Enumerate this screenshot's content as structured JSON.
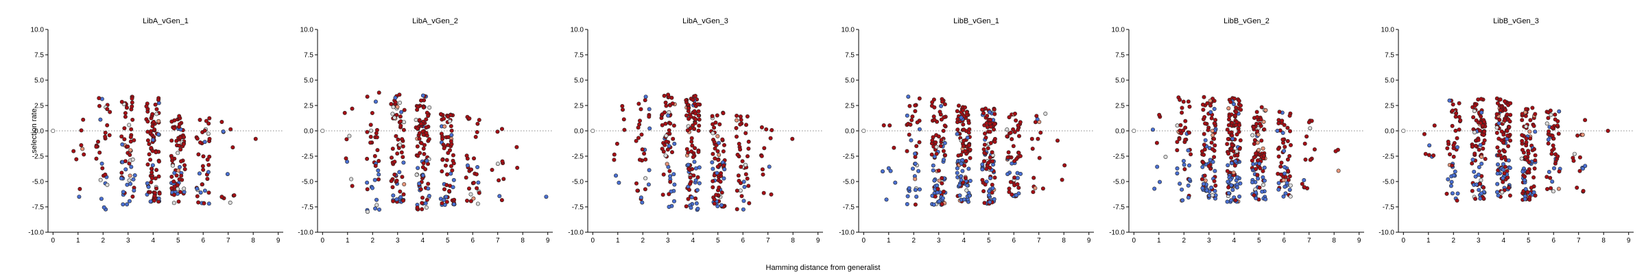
{
  "figure": {
    "xlabel": "Hamming distance from generalist",
    "ylabel": "selection rate"
  },
  "colors": {
    "red": "#a50f15",
    "blue": "#4a6fd1",
    "light": "#d9d9d9",
    "salmon": "#e6957a"
  },
  "chart_data": [
    {
      "type": "scatter",
      "title": "LibA_vGen_1",
      "xlim": [
        -0.2,
        9.2
      ],
      "ylim": [
        -10,
        10
      ],
      "xticks": [
        0,
        1,
        2,
        3,
        4,
        5,
        6,
        7,
        8,
        9
      ],
      "yticks": [
        10.0,
        7.5,
        5.0,
        2.5,
        0.0,
        -2.5,
        -5.0,
        -7.5,
        -10.0
      ],
      "reference_y": 0,
      "groups": [
        {
          "x": 0,
          "n": 1,
          "ymin": 0,
          "ymax": 0,
          "red": 0,
          "blue": 0
        },
        {
          "x": 1,
          "n": 9,
          "ymin": -7.2,
          "ymax": 2.6,
          "red": 0.5,
          "blue": 0.4
        },
        {
          "x": 2,
          "n": 30,
          "ymin": -8.0,
          "ymax": 3.6,
          "red": 0.55,
          "blue": 0.3
        },
        {
          "x": 3,
          "n": 60,
          "ymin": -7.3,
          "ymax": 3.5,
          "red": 0.6,
          "blue": 0.25
        },
        {
          "x": 4,
          "n": 90,
          "ymin": -7.0,
          "ymax": 3.3,
          "red": 0.7,
          "blue": 0.15
        },
        {
          "x": 5,
          "n": 75,
          "ymin": -7.2,
          "ymax": 1.8,
          "red": 0.75,
          "blue": 0.15
        },
        {
          "x": 6,
          "n": 40,
          "ymin": -7.3,
          "ymax": 1.5,
          "red": 0.8,
          "blue": 0.12
        },
        {
          "x": 7,
          "n": 12,
          "ymin": -7.1,
          "ymax": 1.2,
          "red": 0.75,
          "blue": 0.15
        },
        {
          "x": 8,
          "n": 1,
          "ymin": -0.8,
          "ymax": -0.8,
          "red": 1,
          "blue": 0
        }
      ]
    },
    {
      "type": "scatter",
      "title": "LibA_vGen_2",
      "xlim": [
        -0.2,
        9.2
      ],
      "ylim": [
        -10,
        10
      ],
      "xticks": [
        0,
        1,
        2,
        3,
        4,
        5,
        6,
        7,
        8,
        9
      ],
      "yticks": [
        10.0,
        7.5,
        5.0,
        2.5,
        0.0,
        -2.5,
        -5.0,
        -7.5,
        -10.0
      ],
      "reference_y": 0,
      "groups": [
        {
          "x": 0,
          "n": 1,
          "ymin": 0,
          "ymax": 0,
          "red": 0,
          "blue": 0
        },
        {
          "x": 1,
          "n": 8,
          "ymin": -5.5,
          "ymax": 2.8,
          "red": 0.5,
          "blue": 0.4
        },
        {
          "x": 2,
          "n": 35,
          "ymin": -8.0,
          "ymax": 3.8,
          "red": 0.55,
          "blue": 0.3
        },
        {
          "x": 3,
          "n": 70,
          "ymin": -7.0,
          "ymax": 3.6,
          "red": 0.6,
          "blue": 0.25
        },
        {
          "x": 4,
          "n": 95,
          "ymin": -7.8,
          "ymax": 3.5,
          "red": 0.65,
          "blue": 0.2
        },
        {
          "x": 5,
          "n": 70,
          "ymin": -7.3,
          "ymax": 1.8,
          "red": 0.75,
          "blue": 0.15
        },
        {
          "x": 6,
          "n": 30,
          "ymin": -7.2,
          "ymax": 1.4,
          "red": 0.8,
          "blue": 0.1
        },
        {
          "x": 7,
          "n": 10,
          "ymin": -7.0,
          "ymax": 1.0,
          "red": 0.8,
          "blue": 0.1
        },
        {
          "x": 8,
          "n": 2,
          "ymin": -6.5,
          "ymax": -0.7,
          "red": 1,
          "blue": 0
        },
        {
          "x": 9,
          "n": 1,
          "ymin": -6.5,
          "ymax": -6.5,
          "red": 0,
          "blue": 1
        }
      ]
    },
    {
      "type": "scatter",
      "title": "LibA_vGen_3",
      "xlim": [
        -0.2,
        9.2
      ],
      "ylim": [
        -10,
        10
      ],
      "xticks": [
        0,
        1,
        2,
        3,
        4,
        5,
        6,
        7,
        8,
        9
      ],
      "yticks": [
        10.0,
        7.5,
        5.0,
        2.5,
        0.0,
        -2.5,
        -5.0,
        -7.5,
        -10.0
      ],
      "reference_y": 0,
      "groups": [
        {
          "x": 0,
          "n": 1,
          "ymin": 0,
          "ymax": 0,
          "red": 0,
          "blue": 0
        },
        {
          "x": 1,
          "n": 9,
          "ymin": -5.5,
          "ymax": 3.0,
          "red": 0.5,
          "blue": 0.4
        },
        {
          "x": 2,
          "n": 30,
          "ymin": -7.3,
          "ymax": 3.7,
          "red": 0.55,
          "blue": 0.3
        },
        {
          "x": 3,
          "n": 60,
          "ymin": -7.5,
          "ymax": 3.6,
          "red": 0.6,
          "blue": 0.25
        },
        {
          "x": 4,
          "n": 95,
          "ymin": -7.8,
          "ymax": 3.5,
          "red": 0.65,
          "blue": 0.2
        },
        {
          "x": 5,
          "n": 75,
          "ymin": -7.5,
          "ymax": 1.8,
          "red": 0.75,
          "blue": 0.15
        },
        {
          "x": 6,
          "n": 40,
          "ymin": -7.8,
          "ymax": 1.6,
          "red": 0.8,
          "blue": 0.1
        },
        {
          "x": 7,
          "n": 12,
          "ymin": -6.8,
          "ymax": 1.2,
          "red": 0.8,
          "blue": 0.1
        },
        {
          "x": 8,
          "n": 1,
          "ymin": -0.8,
          "ymax": -0.8,
          "red": 1,
          "blue": 0
        }
      ]
    },
    {
      "type": "scatter",
      "title": "LibB_vGen_1",
      "xlim": [
        -0.2,
        9.2
      ],
      "ylim": [
        -10,
        10
      ],
      "xticks": [
        0,
        1,
        2,
        3,
        4,
        5,
        6,
        7,
        8,
        9
      ],
      "yticks": [
        10.0,
        7.5,
        5.0,
        2.5,
        0.0,
        -2.5,
        -5.0,
        -7.5,
        -10.0
      ],
      "reference_y": 0,
      "groups": [
        {
          "x": 0,
          "n": 1,
          "ymin": 0,
          "ymax": 0,
          "red": 0,
          "blue": 0
        },
        {
          "x": 1,
          "n": 8,
          "ymin": -7.0,
          "ymax": 1.8,
          "red": 0.5,
          "blue": 0.45
        },
        {
          "x": 2,
          "n": 40,
          "ymin": -7.3,
          "ymax": 3.4,
          "red": 0.55,
          "blue": 0.35
        },
        {
          "x": 3,
          "n": 90,
          "ymin": -7.3,
          "ymax": 3.3,
          "red": 0.6,
          "blue": 0.3
        },
        {
          "x": 4,
          "n": 110,
          "ymin": -7.0,
          "ymax": 2.5,
          "red": 0.6,
          "blue": 0.3
        },
        {
          "x": 5,
          "n": 100,
          "ymin": -7.2,
          "ymax": 2.2,
          "red": 0.65,
          "blue": 0.25
        },
        {
          "x": 6,
          "n": 55,
          "ymin": -6.5,
          "ymax": 1.8,
          "red": 0.7,
          "blue": 0.2
        },
        {
          "x": 7,
          "n": 15,
          "ymin": -6.5,
          "ymax": 1.7,
          "red": 0.85,
          "blue": 0.05
        },
        {
          "x": 8,
          "n": 3,
          "ymin": -6.0,
          "ymax": 0.2,
          "red": 1,
          "blue": 0
        }
      ]
    },
    {
      "type": "scatter",
      "title": "LibB_vGen_2",
      "xlim": [
        -0.2,
        9.2
      ],
      "ylim": [
        -10,
        10
      ],
      "xticks": [
        0,
        1,
        2,
        3,
        4,
        5,
        6,
        7,
        8,
        9
      ],
      "yticks": [
        10.0,
        7.5,
        5.0,
        2.5,
        0.0,
        -2.5,
        -5.0,
        -7.5,
        -10.0
      ],
      "reference_y": 0,
      "groups": [
        {
          "x": 0,
          "n": 1,
          "ymin": 0,
          "ymax": 0,
          "red": 0,
          "blue": 0
        },
        {
          "x": 1,
          "n": 8,
          "ymin": -6.0,
          "ymax": 1.8,
          "red": 0.5,
          "blue": 0.45
        },
        {
          "x": 2,
          "n": 45,
          "ymin": -7.0,
          "ymax": 3.4,
          "red": 0.55,
          "blue": 0.35
        },
        {
          "x": 3,
          "n": 90,
          "ymin": -6.8,
          "ymax": 3.4,
          "red": 0.6,
          "blue": 0.3
        },
        {
          "x": 4,
          "n": 120,
          "ymin": -7.0,
          "ymax": 3.3,
          "red": 0.6,
          "blue": 0.3
        },
        {
          "x": 5,
          "n": 95,
          "ymin": -6.8,
          "ymax": 2.5,
          "red": 0.65,
          "blue": 0.25
        },
        {
          "x": 6,
          "n": 55,
          "ymin": -6.5,
          "ymax": 2.0,
          "red": 0.7,
          "blue": 0.2
        },
        {
          "x": 7,
          "n": 15,
          "ymin": -6.0,
          "ymax": 1.6,
          "red": 0.8,
          "blue": 0.1
        },
        {
          "x": 8,
          "n": 3,
          "ymin": -4.6,
          "ymax": 0.3,
          "red": 1,
          "blue": 0
        }
      ]
    },
    {
      "type": "scatter",
      "title": "LibB_vGen_3",
      "xlim": [
        -0.2,
        9.2
      ],
      "ylim": [
        -10,
        10
      ],
      "xticks": [
        0,
        1,
        2,
        3,
        4,
        5,
        6,
        7,
        8,
        9
      ],
      "yticks": [
        10.0,
        7.5,
        5.0,
        2.5,
        0.0,
        -2.5,
        -5.0,
        -7.5,
        -10.0
      ],
      "reference_y": 0,
      "groups": [
        {
          "x": 0,
          "n": 1,
          "ymin": 0,
          "ymax": 0,
          "red": 0,
          "blue": 0
        },
        {
          "x": 1,
          "n": 7,
          "ymin": -5.5,
          "ymax": 1.8,
          "red": 0.5,
          "blue": 0.45
        },
        {
          "x": 2,
          "n": 45,
          "ymin": -7.0,
          "ymax": 3.4,
          "red": 0.55,
          "blue": 0.35
        },
        {
          "x": 3,
          "n": 90,
          "ymin": -6.8,
          "ymax": 3.3,
          "red": 0.6,
          "blue": 0.3
        },
        {
          "x": 4,
          "n": 115,
          "ymin": -6.5,
          "ymax": 3.2,
          "red": 0.6,
          "blue": 0.3
        },
        {
          "x": 5,
          "n": 95,
          "ymin": -6.8,
          "ymax": 2.3,
          "red": 0.65,
          "blue": 0.25
        },
        {
          "x": 6,
          "n": 50,
          "ymin": -6.5,
          "ymax": 2.0,
          "red": 0.7,
          "blue": 0.2
        },
        {
          "x": 7,
          "n": 15,
          "ymin": -6.0,
          "ymax": 1.3,
          "red": 0.8,
          "blue": 0.1
        },
        {
          "x": 8,
          "n": 1,
          "ymin": 0.0,
          "ymax": 0.0,
          "red": 1,
          "blue": 0
        }
      ]
    }
  ]
}
